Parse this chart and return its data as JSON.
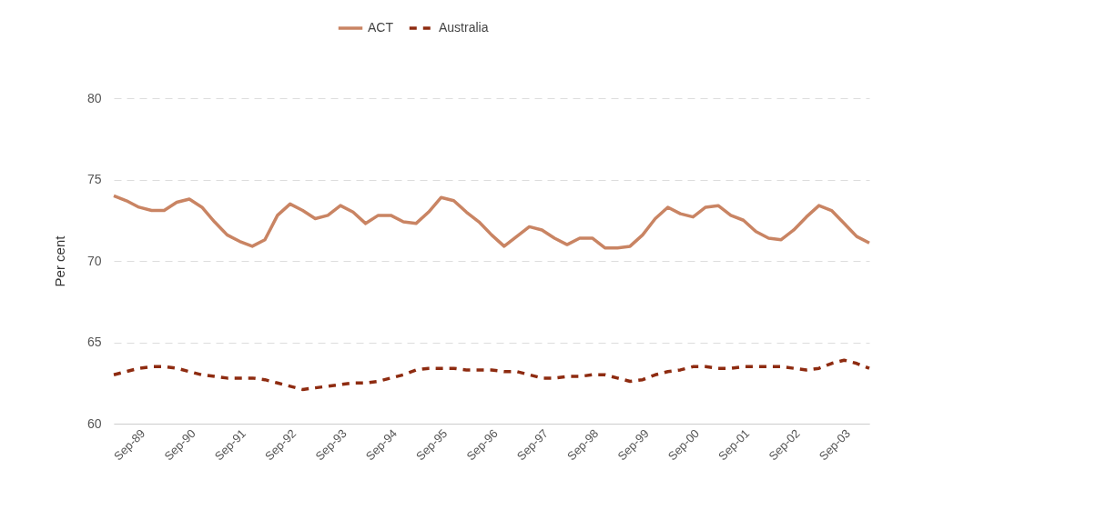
{
  "chart_data": {
    "type": "line",
    "ylabel": "Per cent",
    "ylim": [
      60,
      80
    ],
    "yticks": [
      60,
      65,
      70,
      75,
      80
    ],
    "grid": "y",
    "legend": "top",
    "marker": "none",
    "categories": [
      null,
      null,
      "Sep-89",
      null,
      null,
      null,
      "Sep-90",
      null,
      null,
      null,
      "Sep-91",
      null,
      null,
      null,
      "Sep-92",
      null,
      null,
      null,
      "Sep-93",
      null,
      null,
      null,
      "Sep-94",
      null,
      null,
      null,
      "Sep-95",
      null,
      null,
      null,
      "Sep-96",
      null,
      null,
      null,
      "Sep-97",
      null,
      null,
      null,
      "Sep-98",
      null,
      null,
      null,
      "Sep-99",
      null,
      null,
      null,
      "Sep-00",
      null,
      null,
      null,
      "Sep-01",
      null,
      null,
      null,
      "Sep-02",
      null,
      null,
      null,
      "Sep-03",
      null,
      null
    ],
    "series": [
      {
        "name": "ACT",
        "color": "#c98463",
        "line_style": "solid",
        "values": [
          74.0,
          73.7,
          73.3,
          73.1,
          73.1,
          73.6,
          73.8,
          73.3,
          72.4,
          71.6,
          71.2,
          70.9,
          71.3,
          72.8,
          73.5,
          73.1,
          72.6,
          72.8,
          73.4,
          73.0,
          72.3,
          72.8,
          72.8,
          72.4,
          72.3,
          73.0,
          73.9,
          73.7,
          73.0,
          72.4,
          71.6,
          70.9,
          71.5,
          72.1,
          71.9,
          71.4,
          71.0,
          71.4,
          71.4,
          70.8,
          70.8,
          70.9,
          71.6,
          72.6,
          73.3,
          72.9,
          72.7,
          73.3,
          73.4,
          72.8,
          72.5,
          71.8,
          71.4,
          71.3,
          71.9,
          72.7,
          73.4,
          73.1,
          72.3,
          71.5,
          71.1
        ]
      },
      {
        "name": "Australia",
        "color": "#8e2b10",
        "line_style": "dashed",
        "values": [
          63.0,
          63.2,
          63.4,
          63.5,
          63.5,
          63.4,
          63.2,
          63.0,
          62.9,
          62.8,
          62.8,
          62.8,
          62.7,
          62.5,
          62.3,
          62.1,
          62.2,
          62.3,
          62.4,
          62.5,
          62.5,
          62.6,
          62.8,
          63.0,
          63.3,
          63.4,
          63.4,
          63.4,
          63.3,
          63.3,
          63.3,
          63.2,
          63.2,
          63.0,
          62.8,
          62.8,
          62.9,
          62.9,
          63.0,
          63.0,
          62.8,
          62.6,
          62.7,
          63.0,
          63.2,
          63.3,
          63.5,
          63.5,
          63.4,
          63.4,
          63.5,
          63.5,
          63.5,
          63.5,
          63.4,
          63.3,
          63.4,
          63.7,
          63.9,
          63.7,
          63.4
        ]
      }
    ]
  }
}
